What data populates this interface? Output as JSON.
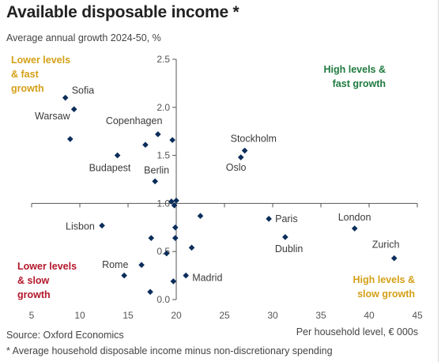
{
  "title": "Available disposable income *",
  "source": "Source: Oxford Economics",
  "footnote": "* Average household disposable income minus non-discretionary spending",
  "colors": {
    "marker": "#0b2d5b",
    "green": "#1f7a3f",
    "gold": "#d4a017",
    "red": "#b3172b",
    "axis": "#555555",
    "text": "#3a3a3a"
  },
  "chart_data": {
    "type": "scatter",
    "ylabel": "Average annual growth 2024-50, %",
    "xlabel": "Per household level, € 000s",
    "xlim": [
      5,
      45
    ],
    "ylim": [
      0,
      2.5
    ],
    "x_ticks": [
      "5",
      "10",
      "15",
      "20",
      "25",
      "30",
      "35",
      "40",
      "45"
    ],
    "y_ticks": [
      "0.0",
      "0.5",
      "1.0",
      "1.5",
      "2.0",
      "2.5"
    ],
    "axis_cross": {
      "x": 20,
      "y": 1.0
    },
    "quadrants": [
      {
        "lines": [
          "Lower levels",
          "& fast",
          "growth"
        ],
        "color": "gold"
      },
      {
        "lines": [
          "High levels &",
          "fast growth"
        ],
        "color": "green"
      },
      {
        "lines": [
          "Lower levels",
          "& slow",
          "growth"
        ],
        "color": "red"
      },
      {
        "lines": [
          "High levels &",
          "slow growth"
        ],
        "color": "gold"
      }
    ],
    "points": [
      {
        "x": 8.5,
        "y": 2.1,
        "label": "Sofia"
      },
      {
        "x": 9.4,
        "y": 1.98,
        "label": "Warsaw"
      },
      {
        "x": 9.0,
        "y": 1.67,
        "label": ""
      },
      {
        "x": 18.1,
        "y": 1.72,
        "label": "Copenhagen"
      },
      {
        "x": 19.6,
        "y": 1.66,
        "label": ""
      },
      {
        "x": 16.8,
        "y": 1.61,
        "label": ""
      },
      {
        "x": 13.9,
        "y": 1.5,
        "label": "Budapest"
      },
      {
        "x": 17.8,
        "y": 1.23,
        "label": "Berlin"
      },
      {
        "x": 27.1,
        "y": 1.55,
        "label": "Stockholm"
      },
      {
        "x": 26.7,
        "y": 1.48,
        "label": "Oslo"
      },
      {
        "x": 19.5,
        "y": 1.02,
        "label": ""
      },
      {
        "x": 20.0,
        "y": 1.03,
        "label": ""
      },
      {
        "x": 19.8,
        "y": 0.98,
        "label": ""
      },
      {
        "x": 22.5,
        "y": 0.87,
        "label": ""
      },
      {
        "x": 29.6,
        "y": 0.84,
        "label": "Paris"
      },
      {
        "x": 38.5,
        "y": 0.74,
        "label": "London"
      },
      {
        "x": 12.3,
        "y": 0.77,
        "label": "Lisbon"
      },
      {
        "x": 19.9,
        "y": 0.75,
        "label": ""
      },
      {
        "x": 17.4,
        "y": 0.64,
        "label": ""
      },
      {
        "x": 19.9,
        "y": 0.64,
        "label": ""
      },
      {
        "x": 31.3,
        "y": 0.65,
        "label": "Dublin"
      },
      {
        "x": 21.6,
        "y": 0.54,
        "label": ""
      },
      {
        "x": 19.0,
        "y": 0.48,
        "label": ""
      },
      {
        "x": 42.6,
        "y": 0.43,
        "label": "Zurich"
      },
      {
        "x": 16.4,
        "y": 0.36,
        "label": "Rome"
      },
      {
        "x": 14.6,
        "y": 0.25,
        "label": ""
      },
      {
        "x": 21.0,
        "y": 0.25,
        "label": "Madrid"
      },
      {
        "x": 19.7,
        "y": 0.19,
        "label": ""
      },
      {
        "x": 17.3,
        "y": 0.08,
        "label": ""
      }
    ]
  }
}
